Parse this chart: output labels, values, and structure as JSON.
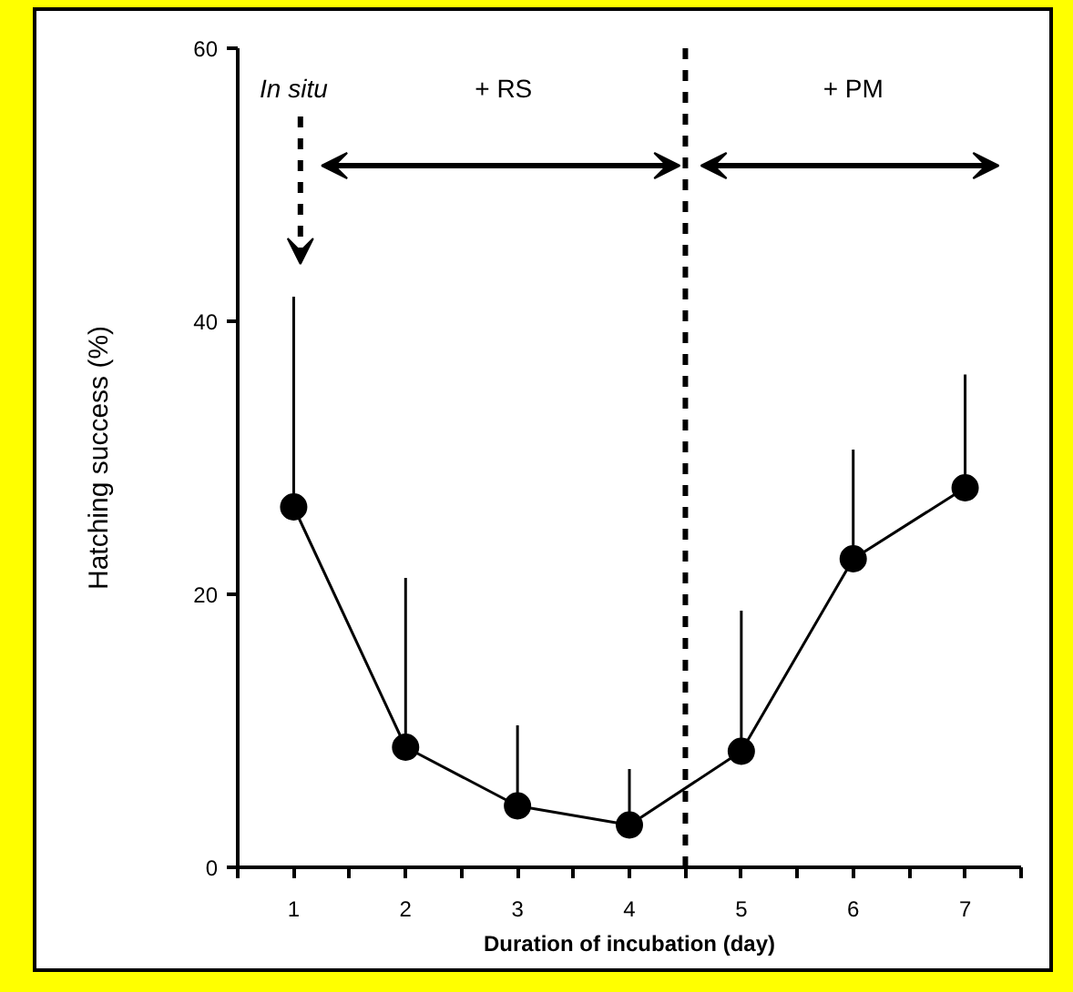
{
  "chart_data": {
    "type": "line",
    "xlabel": "Duration of incubation (day)",
    "ylabel": "Hatching success (%)",
    "x": [
      1,
      2,
      3,
      4,
      5,
      6,
      7
    ],
    "series": [
      {
        "color": "#000000",
        "values": [
          26.4,
          8.8,
          4.5,
          3.1,
          8.5,
          22.6,
          27.8
        ],
        "errors": [
          [
            26.4,
            41.8
          ],
          [
            8.8,
            21.2
          ],
          [
            4.5,
            10.4
          ],
          [
            3.1,
            7.2
          ],
          [
            8.5,
            18.8
          ],
          [
            22.6,
            30.6
          ],
          [
            27.8,
            36.1
          ]
        ]
      }
    ],
    "xlim": [
      0.5,
      7.5
    ],
    "ylim": [
      0,
      60
    ],
    "xticks": [
      {
        "value": 0.5,
        "label": null
      },
      1,
      {
        "value": 1.5,
        "label": null
      },
      2,
      {
        "value": 2.5,
        "label": null
      },
      3,
      {
        "value": 3.5,
        "label": null
      },
      4,
      {
        "value": 4.5,
        "label": null
      },
      5,
      {
        "value": 5.5,
        "label": null
      },
      6,
      {
        "value": 6.5,
        "label": null
      },
      7,
      {
        "value": 7.5,
        "label": null
      }
    ],
    "yticks": [
      0,
      20,
      40,
      60
    ],
    "ref_lines": [
      {
        "axis": "x",
        "value": 4.5,
        "line_style": "dashed",
        "color": "#000000"
      }
    ],
    "annotations": [
      "In situ",
      "+ RS",
      "+ PM"
    ],
    "marker": "circle",
    "line_style": "solid",
    "grid": false
  }
}
